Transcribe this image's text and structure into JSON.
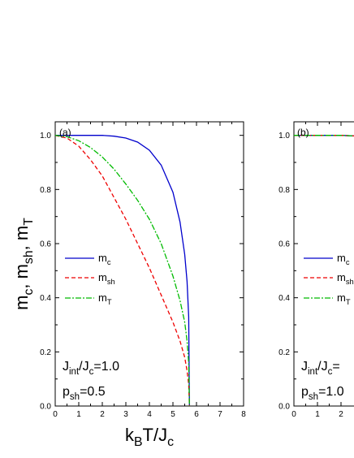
{
  "chart_data": [
    {
      "type": "line",
      "panel_label": "(a)",
      "xlim": [
        0,
        8
      ],
      "ylim": [
        0,
        1.05
      ],
      "x_ticks": [
        "0",
        "1",
        "2",
        "3",
        "4",
        "5",
        "6",
        "7",
        "8"
      ],
      "y_ticks": [
        "0.0",
        "0.2",
        "0.4",
        "0.6",
        "0.8",
        "1.0"
      ],
      "ylabel": "m_c, m_sh, m_T",
      "xlabel": "k_B T/J_c",
      "annotations": {
        "jint": "J_int/J_c=1.0",
        "psh": "p_sh=0.5"
      },
      "legend_position": "left-middle",
      "series": [
        {
          "name": "m_c",
          "color": "#0000cc",
          "style": "solid",
          "x": [
            0,
            1.0,
            1.5,
            2.0,
            2.5,
            3.0,
            3.5,
            4.0,
            4.5,
            5.0,
            5.3,
            5.5,
            5.6,
            5.67,
            5.7
          ],
          "y": [
            1.0,
            1.0,
            1.0,
            1.0,
            0.997,
            0.99,
            0.975,
            0.945,
            0.89,
            0.79,
            0.68,
            0.56,
            0.46,
            0.33,
            0.0
          ]
        },
        {
          "name": "m_sh",
          "color": "#ee0000",
          "style": "dashed",
          "x": [
            0,
            0.5,
            1.0,
            1.5,
            2.0,
            2.5,
            3.0,
            3.5,
            4.0,
            4.5,
            5.0,
            5.3,
            5.5,
            5.6,
            5.67,
            5.7
          ],
          "y": [
            1.0,
            0.99,
            0.96,
            0.91,
            0.85,
            0.77,
            0.69,
            0.6,
            0.51,
            0.41,
            0.31,
            0.24,
            0.18,
            0.13,
            0.08,
            0.0
          ]
        },
        {
          "name": "m_T",
          "color": "#00bb00",
          "style": "dashdot",
          "x": [
            0,
            0.5,
            1.0,
            1.5,
            2.0,
            2.5,
            3.0,
            3.5,
            4.0,
            4.5,
            5.0,
            5.3,
            5.5,
            5.6,
            5.67,
            5.7
          ],
          "y": [
            1.0,
            0.995,
            0.98,
            0.955,
            0.92,
            0.875,
            0.82,
            0.76,
            0.69,
            0.6,
            0.48,
            0.39,
            0.31,
            0.24,
            0.16,
            0.0
          ]
        }
      ]
    },
    {
      "type": "line",
      "panel_label": "(b)",
      "xlim": [
        0,
        8
      ],
      "ylim": [
        0,
        1.05
      ],
      "x_ticks": [
        "0",
        "1",
        "2"
      ],
      "y_ticks": [
        "0.0",
        "0.2",
        "0.4",
        "0.6",
        "0.8",
        "1.0"
      ],
      "annotations": {
        "jint": "J_int/J_c=",
        "psh": "p_sh=1.0"
      },
      "legend_position": "left-middle",
      "series": [
        {
          "name": "m_c",
          "color": "#0000cc",
          "style": "solid",
          "x": [
            0,
            1,
            2,
            2.5,
            3
          ],
          "y": [
            1.0,
            1.0,
            1.0,
            0.998,
            0.995
          ]
        },
        {
          "name": "m_sh",
          "color": "#ee0000",
          "style": "dashed",
          "x": [
            0,
            1,
            2,
            2.5,
            3
          ],
          "y": [
            1.0,
            1.0,
            1.0,
            0.998,
            0.995
          ]
        },
        {
          "name": "m_T",
          "color": "#00bb00",
          "style": "dashdot",
          "x": [
            0,
            1,
            2,
            2.5,
            3
          ],
          "y": [
            1.0,
            1.0,
            1.0,
            0.998,
            0.995
          ]
        }
      ]
    }
  ]
}
